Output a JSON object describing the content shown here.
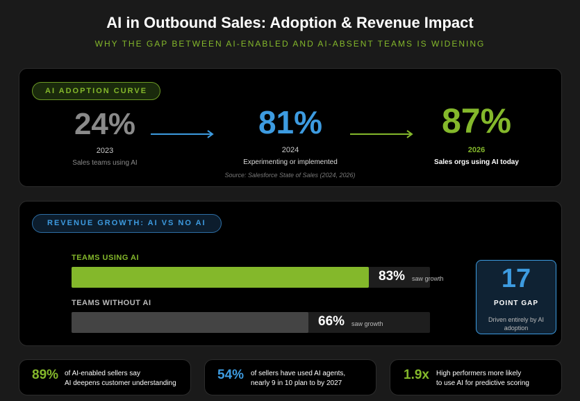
{
  "header": {
    "title": "AI in Outbound Sales: Adoption & Revenue Impact",
    "subtitle": "WHY THE GAP BETWEEN AI-ENABLED AND AI-ABSENT TEAMS IS WIDENING"
  },
  "adoption": {
    "pill": "AI ADOPTION CURVE",
    "stats": [
      {
        "value": "24%",
        "year": "2023",
        "desc": "Sales teams using AI"
      },
      {
        "value": "81%",
        "year": "2024",
        "desc": "Experimenting or implemented"
      },
      {
        "value": "87%",
        "year": "2026",
        "desc": "Sales orgs using AI today"
      }
    ],
    "source": "Source: Salesforce State of Sales (2024, 2026)"
  },
  "revenue": {
    "pill": "REVENUE GROWTH: AI VS NO AI",
    "suffix": "saw growth",
    "gap": {
      "value": "17",
      "label": "POINT GAP",
      "desc": "Driven entirely by AI adoption"
    }
  },
  "chart_data": {
    "type": "bar",
    "orientation": "horizontal",
    "categories": [
      "TEAMS USING AI",
      "TEAMS WITHOUT AI"
    ],
    "values": [
      83,
      66
    ],
    "value_labels": [
      "83%",
      "66%"
    ],
    "xlim": [
      0,
      100
    ],
    "colors": [
      "#84b82b",
      "#444444"
    ]
  },
  "footer": [
    {
      "value": "89%",
      "line1": "of AI-enabled sellers say",
      "line2": "AI deepens customer understanding"
    },
    {
      "value": "54%",
      "line1": "of sellers have used AI agents,",
      "line2": "nearly 9 in 10 plan to by 2027"
    },
    {
      "value": "1.9x",
      "line1": "High performers more likely",
      "line2": "to use AI for predictive scoring"
    }
  ],
  "colors": {
    "green": "#84b82b",
    "blue": "#3d9be0",
    "gray_stat": "#8a8a8a",
    "bar_gray": "#444444"
  },
  "icons": [
    "arrow-right-icon-blue",
    "arrow-right-icon-green"
  ]
}
